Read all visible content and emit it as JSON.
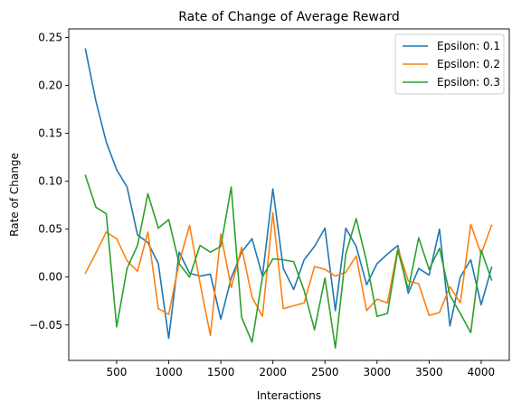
{
  "chart_data": {
    "type": "line",
    "title": "Rate of Change of Average Reward",
    "xlabel": "Interactions",
    "ylabel": "Rate of Change",
    "xlim": [
      40,
      4270
    ],
    "ylim": [
      -0.087,
      0.259
    ],
    "xticks": [
      500,
      1000,
      1500,
      2000,
      2500,
      3000,
      3500,
      4000
    ],
    "yticks": [
      -0.05,
      0.0,
      0.05,
      0.1,
      0.15,
      0.2,
      0.25
    ],
    "ytick_labels": [
      "−0.05",
      "0.00",
      "0.05",
      "0.10",
      "0.15",
      "0.20",
      "0.25"
    ],
    "grid": false,
    "legend_position": "top-right",
    "x": [
      200,
      300,
      400,
      500,
      600,
      700,
      800,
      900,
      1000,
      1100,
      1200,
      1300,
      1400,
      1500,
      1600,
      1700,
      1800,
      1900,
      2000,
      2100,
      2200,
      2300,
      2400,
      2500,
      2600,
      2700,
      2800,
      2900,
      3000,
      3100,
      3200,
      3300,
      3400,
      3500,
      3600,
      3700,
      3800,
      3900,
      4000,
      4100
    ],
    "series": [
      {
        "name": "Epsilon: 0.1",
        "color": "#1f77b4",
        "values": [
          0.238,
          0.184,
          0.141,
          0.112,
          0.094,
          0.044,
          0.036,
          0.014,
          -0.064,
          0.026,
          0.004,
          0.001,
          0.003,
          -0.044,
          -0.001,
          0.026,
          0.04,
          0.001,
          0.092,
          0.009,
          -0.013,
          0.018,
          0.032,
          0.051,
          -0.035,
          0.051,
          0.032,
          -0.008,
          0.014,
          0.024,
          0.033,
          -0.017,
          0.009,
          0.002,
          0.05,
          -0.051,
          0.0,
          0.018,
          -0.029,
          0.01
        ]
      },
      {
        "name": "Epsilon: 0.2",
        "color": "#ff7f0e",
        "values": [
          0.004,
          0.025,
          0.047,
          0.04,
          0.017,
          0.006,
          0.047,
          -0.033,
          -0.039,
          0.015,
          0.054,
          -0.006,
          -0.061,
          0.045,
          -0.011,
          0.031,
          -0.021,
          -0.041,
          0.067,
          -0.033,
          -0.03,
          -0.027,
          0.011,
          0.008,
          0.001,
          0.005,
          0.022,
          -0.035,
          -0.023,
          -0.027,
          0.03,
          -0.004,
          -0.007,
          -0.04,
          -0.037,
          -0.01,
          -0.027,
          0.055,
          0.024,
          0.054
        ]
      },
      {
        "name": "Epsilon: 0.3",
        "color": "#2ca02c",
        "values": [
          0.106,
          0.073,
          0.066,
          -0.052,
          0.009,
          0.033,
          0.087,
          0.051,
          0.06,
          0.014,
          0.0,
          0.033,
          0.026,
          0.032,
          0.094,
          -0.042,
          -0.068,
          0.0,
          0.019,
          0.018,
          0.016,
          -0.014,
          -0.055,
          -0.001,
          -0.074,
          0.024,
          0.061,
          0.016,
          -0.041,
          -0.038,
          0.028,
          -0.013,
          0.041,
          0.008,
          0.03,
          -0.019,
          -0.038,
          -0.058,
          0.028,
          -0.003
        ]
      }
    ]
  }
}
